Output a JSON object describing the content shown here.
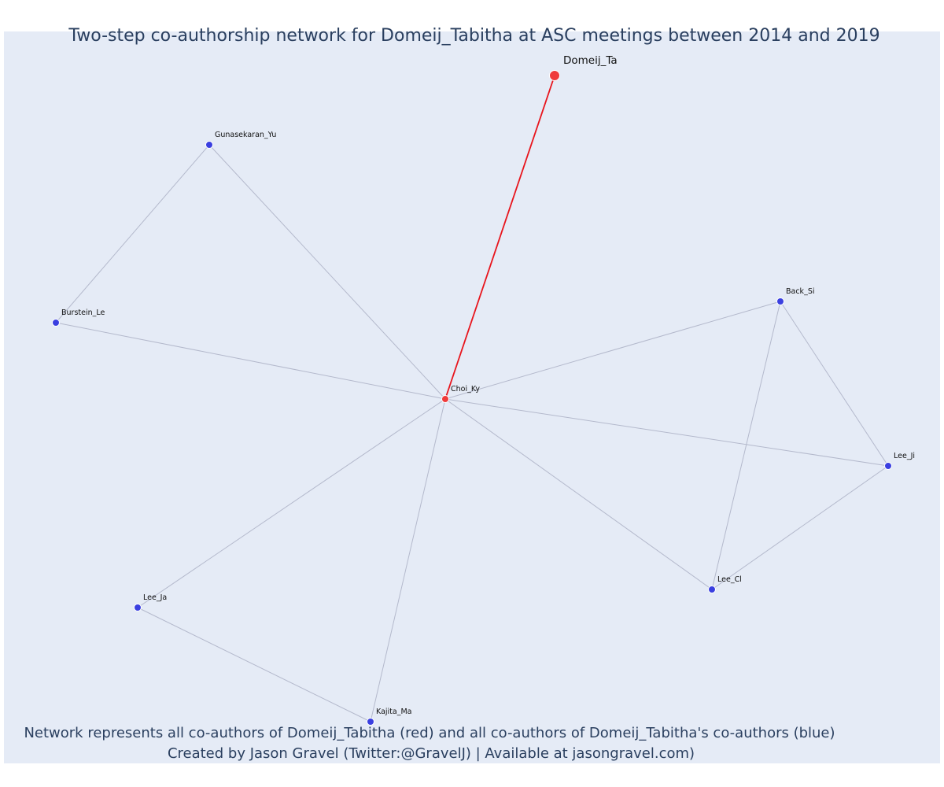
{
  "title": "Two-step co-authorship network for Domeij_Tabitha at ASC meetings between 2014 and 2019",
  "footer": {
    "line1": "Network represents all co-authors of Domeij_Tabitha (red) and all co-authors of Domeij_Tabitha's co-authors (blue)",
    "line2": "Created by Jason Gravel (Twitter:@GravelJ) | Available at jasongravel.com)"
  },
  "colors": {
    "plot_bg": "#e5ebf6",
    "text": "#2a3f5f",
    "focal_node": "#ef3b3b",
    "direct_coauthor": "#ef3b3b",
    "second_step_coauthor": "#3a3fe0",
    "focal_edge": "#e8141c",
    "edge": "#b4b9cc"
  },
  "nodes": [
    {
      "id": "Domeij_Ta",
      "label": "Domeij_Ta",
      "group": "focal"
    },
    {
      "id": "Choi_Ky",
      "label": "Choi_Ky",
      "group": "direct"
    },
    {
      "id": "Gunasekaran_Yu",
      "label": "Gunasekaran_Yu",
      "group": "second"
    },
    {
      "id": "Burstein_Le",
      "label": "Burstein_Le",
      "group": "second"
    },
    {
      "id": "Back_Si",
      "label": "Back_Si",
      "group": "second"
    },
    {
      "id": "Lee_Ji",
      "label": "Lee_Ji",
      "group": "second"
    },
    {
      "id": "Lee_Cl",
      "label": "Lee_Cl",
      "group": "second"
    },
    {
      "id": "Lee_Ja",
      "label": "Lee_Ja",
      "group": "second"
    },
    {
      "id": "Kajita_Ma",
      "label": "Kajita_Ma",
      "group": "second"
    }
  ],
  "edges": [
    {
      "source": "Domeij_Ta",
      "target": "Choi_Ky",
      "focal": true
    },
    {
      "source": "Choi_Ky",
      "target": "Gunasekaran_Yu"
    },
    {
      "source": "Choi_Ky",
      "target": "Burstein_Le"
    },
    {
      "source": "Gunasekaran_Yu",
      "target": "Burstein_Le"
    },
    {
      "source": "Choi_Ky",
      "target": "Back_Si"
    },
    {
      "source": "Choi_Ky",
      "target": "Lee_Ji"
    },
    {
      "source": "Choi_Ky",
      "target": "Lee_Cl"
    },
    {
      "source": "Back_Si",
      "target": "Lee_Ji"
    },
    {
      "source": "Back_Si",
      "target": "Lee_Cl"
    },
    {
      "source": "Lee_Ji",
      "target": "Lee_Cl"
    },
    {
      "source": "Choi_Ky",
      "target": "Lee_Ja"
    },
    {
      "source": "Choi_Ky",
      "target": "Kajita_Ma"
    },
    {
      "source": "Lee_Ja",
      "target": "Kajita_Ma"
    }
  ]
}
